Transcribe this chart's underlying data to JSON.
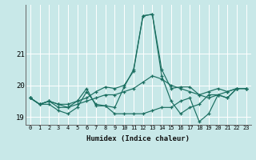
{
  "xlabel": "Humidex (Indice chaleur)",
  "bg_color": "#c8e8e8",
  "grid_color": "#ffffff",
  "line_color": "#1a6e60",
  "xlim": [
    -0.5,
    23.5
  ],
  "ylim": [
    18.75,
    22.55
  ],
  "yticks": [
    19,
    20,
    21
  ],
  "xtick_labels": [
    "0",
    "1",
    "2",
    "3",
    "4",
    "5",
    "6",
    "7",
    "8",
    "9",
    "10",
    "11",
    "12",
    "13",
    "14",
    "15",
    "16",
    "17",
    "18",
    "19",
    "20",
    "21",
    "22",
    "23"
  ],
  "series": [
    [
      19.6,
      19.4,
      19.4,
      19.2,
      19.1,
      19.3,
      19.8,
      19.4,
      19.35,
      19.1,
      19.1,
      19.1,
      19.1,
      19.2,
      19.3,
      19.3,
      19.5,
      19.6,
      18.85,
      19.1,
      19.7,
      19.6,
      19.9,
      19.9
    ],
    [
      19.6,
      19.4,
      19.5,
      19.4,
      19.4,
      19.5,
      19.6,
      19.8,
      19.95,
      19.9,
      20.0,
      20.45,
      22.2,
      22.25,
      20.5,
      19.9,
      19.95,
      19.95,
      19.7,
      19.8,
      19.9,
      19.8,
      19.9,
      19.9
    ],
    [
      19.6,
      19.4,
      19.5,
      19.4,
      19.3,
      19.5,
      19.9,
      19.35,
      19.35,
      19.3,
      19.95,
      20.5,
      22.2,
      22.25,
      20.3,
      19.5,
      19.1,
      19.3,
      19.4,
      19.7,
      19.7,
      19.6,
      19.9,
      19.9
    ],
    [
      19.6,
      19.4,
      19.5,
      19.3,
      19.3,
      19.4,
      19.5,
      19.6,
      19.7,
      19.7,
      19.8,
      19.9,
      20.1,
      20.3,
      20.2,
      20.0,
      19.9,
      19.8,
      19.7,
      19.6,
      19.7,
      19.8,
      19.9,
      19.9
    ]
  ]
}
